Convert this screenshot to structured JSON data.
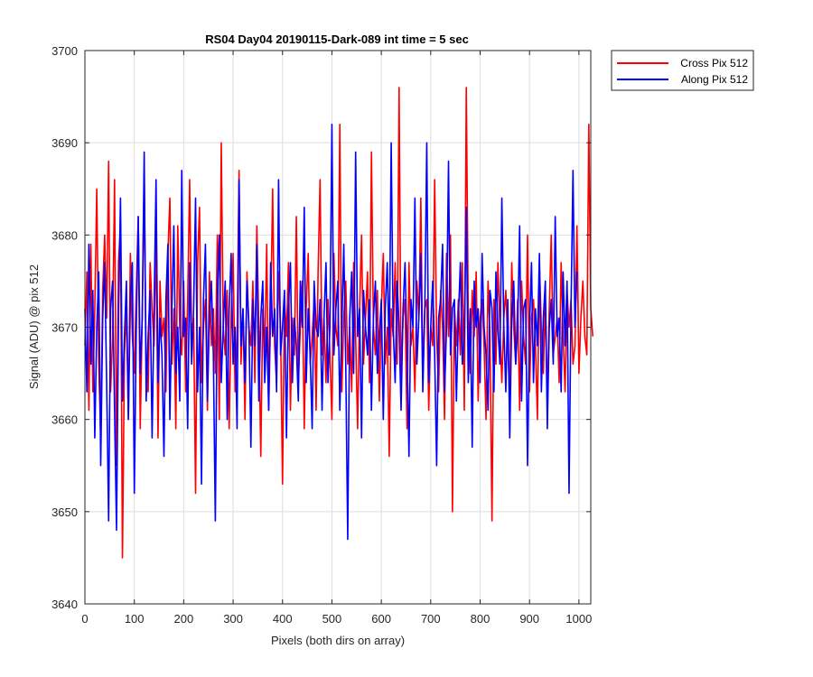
{
  "chart_data": {
    "type": "line",
    "title": "RS04 Day04 20190115-Dark-089 int time = 5 sec",
    "xlabel": "Pixels (both dirs on array)",
    "ylabel": "Signal (ADU) @ pix 512",
    "xlim": [
      0,
      1024
    ],
    "ylim": [
      3640,
      3700
    ],
    "xticks": [
      0,
      100,
      200,
      300,
      400,
      500,
      600,
      700,
      800,
      900,
      1000
    ],
    "yticks": [
      3640,
      3650,
      3660,
      3670,
      3680,
      3690,
      3700
    ],
    "grid": true,
    "legend_position": "outside-top-right",
    "series": [
      {
        "name": "Cross Pix 512",
        "color": "#ff0000",
        "sample_step": 4,
        "values": [
          3668,
          3676,
          3661,
          3679,
          3663,
          3672,
          3685,
          3666,
          3658,
          3674,
          3680,
          3671,
          3688,
          3663,
          3669,
          3686,
          3655,
          3677,
          3681,
          3645,
          3667,
          3672,
          3660,
          3678,
          3669,
          3665,
          3674,
          3682,
          3659,
          3671,
          3686,
          3666,
          3663,
          3677,
          3672,
          3668,
          3680,
          3658,
          3675,
          3669,
          3671,
          3663,
          3678,
          3684,
          3666,
          3672,
          3659,
          3681,
          3670,
          3667,
          3675,
          3663,
          3673,
          3686,
          3669,
          3671,
          3652,
          3677,
          3683,
          3664,
          3670,
          3673,
          3661,
          3676,
          3668,
          3672,
          3665,
          3680,
          3660,
          3690,
          3670,
          3667,
          3674,
          3659,
          3671,
          3678,
          3663,
          3669,
          3687,
          3666,
          3672,
          3660,
          3676,
          3670,
          3668,
          3675,
          3664,
          3681,
          3670,
          3656,
          3672,
          3667,
          3679,
          3661,
          3671,
          3685,
          3668,
          3664,
          3676,
          3670,
          3653,
          3673,
          3669,
          3677,
          3661,
          3671,
          3667,
          3682,
          3664,
          3670,
          3675,
          3659,
          3672,
          3678,
          3666,
          3669,
          3673,
          3661,
          3676,
          3686,
          3667,
          3671,
          3664,
          3673,
          3667,
          3660,
          3678,
          3670,
          3668,
          3692,
          3663,
          3671,
          3675,
          3666,
          3670,
          3663,
          3677,
          3669,
          3659,
          3672,
          3680,
          3666,
          3671,
          3676,
          3664,
          3689,
          3670,
          3667,
          3674,
          3662,
          3672,
          3678,
          3666,
          3670,
          3656,
          3672,
          3669,
          3677,
          3666,
          3696,
          3664,
          3671,
          3673,
          3659,
          3677,
          3668,
          3670,
          3663,
          3675,
          3671,
          3684,
          3665,
          3672,
          3673,
          3661,
          3670,
          3668,
          3686,
          3669,
          3663,
          3674,
          3670,
          3660,
          3678,
          3669,
          3680,
          3650,
          3672,
          3668,
          3673,
          3667,
          3677,
          3661,
          3696,
          3671,
          3665,
          3674,
          3669,
          3676,
          3662,
          3671,
          3673,
          3668,
          3660,
          3675,
          3669,
          3649,
          3673,
          3666,
          3677,
          3670,
          3664,
          3671,
          3674,
          3668,
          3662,
          3677,
          3670,
          3666,
          3673,
          3661,
          3675,
          3669,
          3666,
          3680,
          3663,
          3671,
          3673,
          3668,
          3660,
          3677,
          3670,
          3665,
          3673,
          3662,
          3672,
          3680,
          3667,
          3669,
          3671,
          3664,
          3677,
          3669,
          3663,
          3674,
          3670,
          3673,
          3666,
          3668,
          3681,
          3665,
          3671,
          3675,
          3669,
          3667,
          3692,
          3672,
          3669
        ]
      },
      {
        "name": "Along Pix 512",
        "color": "#0000ff",
        "sample_step": 4,
        "values": [
          3672,
          3663,
          3679,
          3666,
          3674,
          3658,
          3670,
          3676,
          3655,
          3671,
          3677,
          3664,
          3649,
          3672,
          3675,
          3661,
          3648,
          3671,
          3684,
          3662,
          3669,
          3675,
          3660,
          3673,
          3677,
          3652,
          3670,
          3682,
          3665,
          3671,
          3689,
          3662,
          3669,
          3674,
          3658,
          3672,
          3686,
          3664,
          3671,
          3667,
          3656,
          3673,
          3679,
          3660,
          3672,
          3681,
          3665,
          3670,
          3662,
          3687,
          3669,
          3671,
          3659,
          3677,
          3666,
          3672,
          3684,
          3663,
          3670,
          3653,
          3673,
          3679,
          3662,
          3671,
          3675,
          3667,
          3649,
          3673,
          3680,
          3664,
          3670,
          3675,
          3660,
          3672,
          3678,
          3666,
          3670,
          3659,
          3686,
          3668,
          3672,
          3664,
          3675,
          3670,
          3657,
          3673,
          3668,
          3679,
          3662,
          3671,
          3675,
          3664,
          3670,
          3661,
          3677,
          3669,
          3672,
          3663,
          3686,
          3667,
          3670,
          3674,
          3658,
          3672,
          3677,
          3664,
          3671,
          3668,
          3662,
          3675,
          3670,
          3683,
          3664,
          3672,
          3667,
          3659,
          3675,
          3670,
          3669,
          3673,
          3661,
          3671,
          3677,
          3664,
          3670,
          3692,
          3667,
          3672,
          3675,
          3661,
          3670,
          3679,
          3666,
          3647,
          3671,
          3676,
          3665,
          3689,
          3669,
          3672,
          3658,
          3674,
          3670,
          3667,
          3673,
          3661,
          3671,
          3675,
          3665,
          3669,
          3673,
          3660,
          3672,
          3677,
          3667,
          3690,
          3670,
          3664,
          3675,
          3670,
          3661,
          3672,
          3677,
          3668,
          3656,
          3673,
          3670,
          3684,
          3666,
          3671,
          3678,
          3663,
          3672,
          3690,
          3664,
          3670,
          3675,
          3667,
          3655,
          3671,
          3673,
          3679,
          3663,
          3670,
          3688,
          3667,
          3672,
          3673,
          3662,
          3671,
          3677,
          3666,
          3669,
          3683,
          3664,
          3672,
          3657,
          3675,
          3670,
          3672,
          3664,
          3678,
          3670,
          3667,
          3661,
          3674,
          3672,
          3663,
          3676,
          3670,
          3666,
          3684,
          3670,
          3663,
          3673,
          3658,
          3671,
          3675,
          3666,
          3670,
          3681,
          3662,
          3672,
          3673,
          3655,
          3670,
          3677,
          3664,
          3672,
          3668,
          3678,
          3663,
          3671,
          3675,
          3659,
          3670,
          3673,
          3666,
          3682,
          3669,
          3671,
          3663,
          3676,
          3668,
          3675,
          3652,
          3672,
          3687,
          3670,
          3676
        ]
      }
    ]
  }
}
